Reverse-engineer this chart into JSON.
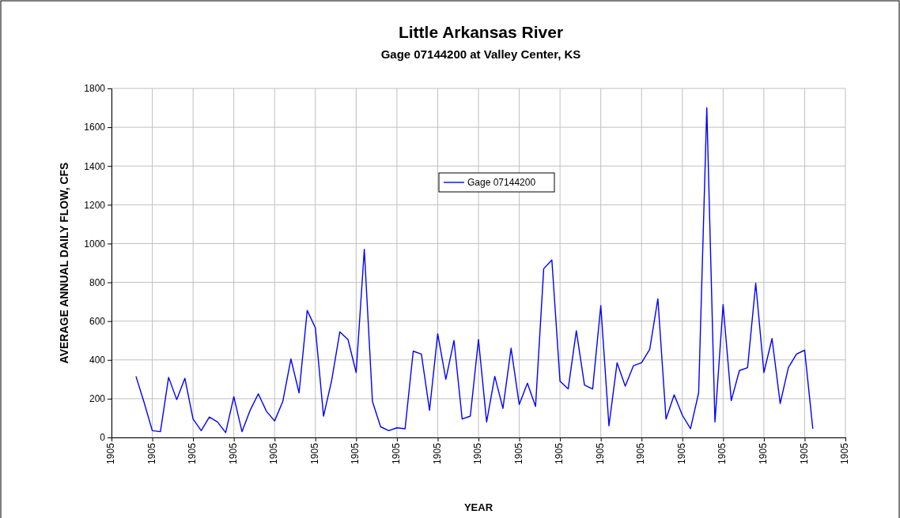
{
  "chart_data": {
    "type": "line",
    "title": "Little Arkansas River",
    "subtitle": "Gage 07144200 at Valley Center, KS",
    "xlabel": "YEAR",
    "ylabel": "AVERAGE ANNUAL DAILY FLOW, CFS",
    "categories": [
      "1905",
      null,
      null,
      null,
      null,
      "1905",
      null,
      null,
      null,
      null,
      "1905",
      null,
      null,
      null,
      null,
      "1905",
      null,
      null,
      null,
      null,
      "1905",
      null,
      null,
      null,
      null,
      "1905",
      null,
      null,
      null,
      null,
      "1905",
      null,
      null,
      null,
      null,
      "1905",
      null,
      null,
      null,
      null,
      "1905",
      null,
      null,
      null,
      null,
      "1905",
      null,
      null,
      null,
      null,
      "1905",
      null,
      null,
      null,
      null,
      "1905",
      null,
      null,
      null,
      null,
      "1905",
      null,
      null,
      null,
      null,
      "1905",
      null,
      null,
      null,
      null,
      "1905",
      null,
      null,
      null,
      null,
      "1905",
      null,
      null,
      null,
      null,
      "1905",
      null,
      null,
      null,
      null,
      "1905",
      null,
      null,
      null,
      null,
      "1905"
    ],
    "series": [
      {
        "name": "Gage 07144200",
        "color": "#0000ff",
        "values": [
          null,
          null,
          null,
          315,
          180,
          35,
          30,
          310,
          195,
          305,
          95,
          35,
          105,
          80,
          25,
          210,
          30,
          140,
          225,
          135,
          85,
          185,
          405,
          230,
          655,
          565,
          110,
          295,
          545,
          505,
          335,
          970,
          185,
          55,
          35,
          50,
          45,
          445,
          430,
          140,
          535,
          300,
          500,
          95,
          110,
          505,
          80,
          315,
          150,
          460,
          170,
          280,
          160,
          870,
          915,
          290,
          250,
          550,
          270,
          250,
          680,
          60,
          385,
          265,
          370,
          385,
          455,
          715,
          95,
          220,
          115,
          45,
          230,
          1700,
          80,
          685,
          190,
          345,
          360,
          795,
          335,
          510,
          175,
          360,
          430,
          450,
          45,
          null,
          null,
          null,
          null
        ]
      }
    ],
    "ylim": [
      0,
      1800
    ],
    "yticks": [
      0,
      200,
      400,
      600,
      800,
      1000,
      1200,
      1400,
      1600,
      1800
    ],
    "grid": true,
    "legend": "top",
    "marker": "none",
    "line_style": "solid"
  }
}
